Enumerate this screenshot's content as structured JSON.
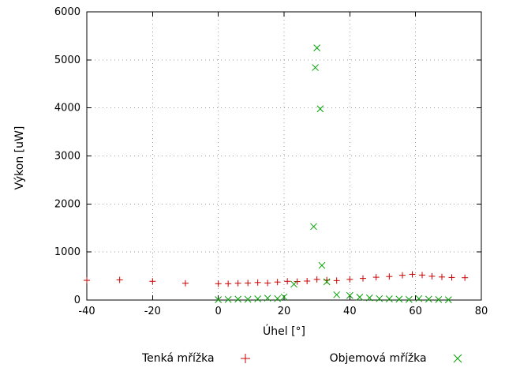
{
  "chart_data": {
    "type": "scatter",
    "title": "",
    "xlabel": "Úhel [°]",
    "ylabel": "Výkon [uW]",
    "xlim": [
      -40,
      80
    ],
    "ylim": [
      0,
      6000
    ],
    "xticks": [
      -40,
      -20,
      0,
      20,
      40,
      60,
      80
    ],
    "yticks": [
      0,
      1000,
      2000,
      3000,
      4000,
      5000,
      6000
    ],
    "grid": true,
    "legend_position": "bottom",
    "series": [
      {
        "name": "Tenká mřížka",
        "marker": "plus",
        "color": "#cc0000",
        "points": [
          [
            -40,
            410
          ],
          [
            -30,
            420
          ],
          [
            -20,
            390
          ],
          [
            -10,
            350
          ],
          [
            0,
            340
          ],
          [
            3,
            340
          ],
          [
            6,
            350
          ],
          [
            9,
            355
          ],
          [
            12,
            365
          ],
          [
            15,
            355
          ],
          [
            18,
            375
          ],
          [
            21,
            390
          ],
          [
            24,
            385
          ],
          [
            27,
            395
          ],
          [
            30,
            430
          ],
          [
            33,
            415
          ],
          [
            36,
            405
          ],
          [
            40,
            430
          ],
          [
            44,
            450
          ],
          [
            48,
            475
          ],
          [
            52,
            490
          ],
          [
            56,
            515
          ],
          [
            59,
            535
          ],
          [
            62,
            520
          ],
          [
            65,
            495
          ],
          [
            68,
            480
          ],
          [
            71,
            470
          ],
          [
            75,
            465
          ]
        ]
      },
      {
        "name": "Objemová mřížka",
        "marker": "cross",
        "color": "#00a000",
        "points": [
          [
            0,
            8
          ],
          [
            3,
            12
          ],
          [
            6,
            18
          ],
          [
            9,
            14
          ],
          [
            12,
            25
          ],
          [
            15,
            40
          ],
          [
            18,
            30
          ],
          [
            20,
            65
          ],
          [
            23,
            330
          ],
          [
            29,
            1530
          ],
          [
            29.5,
            4840
          ],
          [
            30,
            5250
          ],
          [
            31,
            3980
          ],
          [
            31.5,
            720
          ],
          [
            33,
            380
          ],
          [
            36,
            110
          ],
          [
            40,
            95
          ],
          [
            43,
            60
          ],
          [
            46,
            45
          ],
          [
            49,
            30
          ],
          [
            52,
            25
          ],
          [
            55,
            18
          ],
          [
            58,
            12
          ],
          [
            61,
            30
          ],
          [
            64,
            18
          ],
          [
            67,
            10
          ],
          [
            70,
            6
          ]
        ]
      }
    ]
  }
}
